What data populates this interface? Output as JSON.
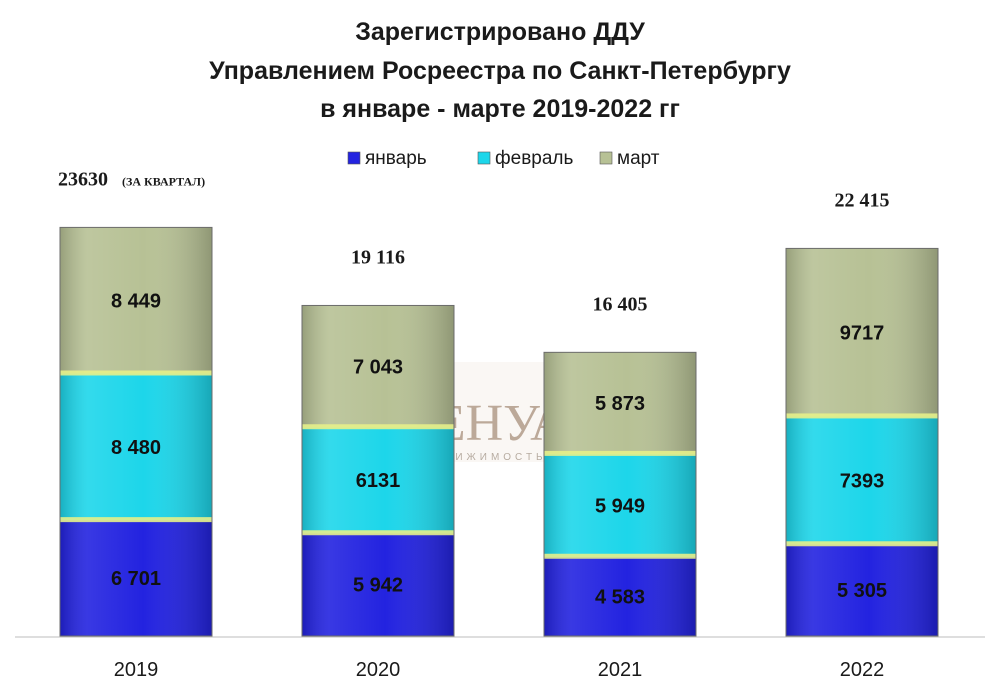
{
  "chart_data": {
    "type": "bar",
    "stacked": true,
    "title": [
      "Зарегистрировано ДДУ",
      "Управлением Росреестра по Санкт-Петербургу",
      "в январе - марте 2019-2022 гг"
    ],
    "categories": [
      "2019",
      "2020",
      "2021",
      "2022"
    ],
    "series": [
      {
        "name": "январь",
        "color": "#2323e0",
        "values": [
          6701,
          5942,
          4583,
          5305
        ],
        "labels": [
          "6 701",
          "5 942",
          "4 583",
          "5 305"
        ]
      },
      {
        "name": "февраль",
        "color": "#1dd6ea",
        "values": [
          8480,
          6131,
          5949,
          7393
        ],
        "labels": [
          "8 480",
          "6131",
          "5 949",
          "7393"
        ]
      },
      {
        "name": "март",
        "color": "#b7c195",
        "values": [
          8449,
          7043,
          5873,
          9717
        ],
        "labels": [
          "8 449",
          "7 043",
          "5 873",
          "9717"
        ]
      }
    ],
    "totals": [
      23630,
      19116,
      16405,
      22415
    ],
    "total_labels": [
      "23630",
      "19 116",
      "16 405",
      "22 415"
    ],
    "total_notes": [
      "(ЗА КВАРТАЛ)",
      "",
      "",
      ""
    ],
    "legend_position": "top",
    "grid": false,
    "ylim": [
      0,
      24000
    ]
  },
  "watermark": {
    "text": "БЕНУА",
    "subtitle": "НЕДВИЖИМОСТЬ"
  }
}
